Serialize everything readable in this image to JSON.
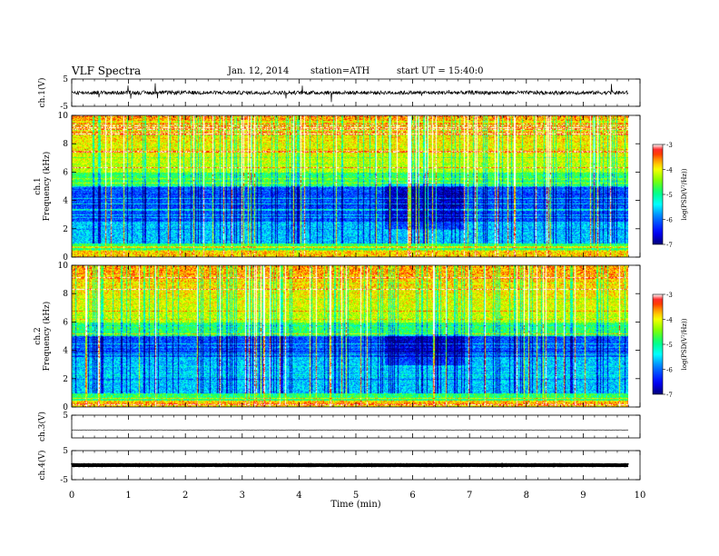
{
  "header": {
    "title": "VLF Spectra",
    "date": "Jan. 12, 2014",
    "station": "station=ATH",
    "start": "start UT =  15:40:0"
  },
  "chart_data": [
    {
      "type": "line",
      "name": "ch1-waveform",
      "ylabel": "ch.1(V)",
      "ylim": [
        -5,
        5
      ],
      "yticks": [
        "5",
        "-5"
      ],
      "description_level": 0.0
    },
    {
      "type": "heatmap",
      "name": "ch1-spectrogram",
      "ylabel": "ch.1\nFrequency (kHz)",
      "ylim": [
        0,
        10
      ],
      "yticks": [
        "0",
        "2",
        "4",
        "6",
        "8",
        "10"
      ],
      "quiet_band_khz": [
        2.5,
        5.0
      ],
      "quiet_interval_min": [
        5.5,
        6.9
      ],
      "colorbar": {
        "label": "log(PSD(V²/Hz))",
        "range": [
          -7,
          -3
        ],
        "ticks": [
          "-3",
          "-4",
          "-5",
          "-6",
          "-7"
        ]
      }
    },
    {
      "type": "heatmap",
      "name": "ch2-spectrogram",
      "ylabel": "ch.2\nFrequency (kHz)",
      "ylim": [
        0,
        10
      ],
      "yticks": [
        "0",
        "2",
        "4",
        "6",
        "8",
        "10"
      ],
      "quiet_band_khz": [
        3.5,
        5.0
      ],
      "quiet_interval_min": [
        5.5,
        6.9
      ],
      "colorbar": {
        "label": "log(PSD(V²/Hz))",
        "range": [
          -7,
          -3
        ],
        "ticks": [
          "-3",
          "-4",
          "-5",
          "-6",
          "-7"
        ]
      }
    },
    {
      "type": "line",
      "name": "ch3-waveform",
      "ylabel": "ch.3(V)",
      "ylim": [
        -5,
        5
      ],
      "yticks": [
        "5"
      ],
      "level": -1.5
    },
    {
      "type": "line",
      "name": "ch4-waveform",
      "ylabel": "ch.4(V)",
      "ylim": [
        -5,
        5
      ],
      "yticks": [
        "5",
        "-5"
      ],
      "level": 0.0
    }
  ],
  "xaxis": {
    "label": "Time (min)",
    "xlim": [
      0,
      10
    ],
    "ticks": [
      "0",
      "1",
      "2",
      "3",
      "4",
      "5",
      "6",
      "7",
      "8",
      "9",
      "10"
    ],
    "data_end": 9.8
  },
  "colors": {
    "colormap": [
      "#000080",
      "#0000ff",
      "#0080ff",
      "#00ffff",
      "#00ff80",
      "#80ff00",
      "#ffff00",
      "#ff8000",
      "#ff0000",
      "#ffffff"
    ]
  }
}
